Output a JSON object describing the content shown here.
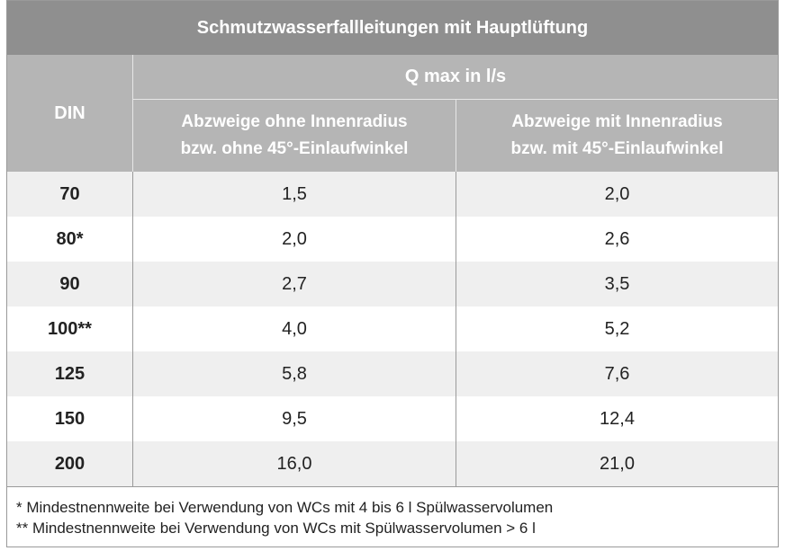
{
  "table": {
    "title": "Schmutzwasserfallleitungen mit Hauptlüftung",
    "din_header": "DIN",
    "q_header": "Q max in l/s",
    "col1_header": [
      "Abzweige ohne Innenradius",
      "bzw. ohne 45°-Einlaufwinkel"
    ],
    "col2_header": [
      "Abzweige mit Innenradius",
      "bzw. mit 45°-Einlaufwinkel"
    ],
    "rows": [
      {
        "din": "70",
        "v1": "1,5",
        "v2": "2,0"
      },
      {
        "din": "80*",
        "v1": "2,0",
        "v2": "2,6"
      },
      {
        "din": "90",
        "v1": "2,7",
        "v2": "3,5"
      },
      {
        "din": "100**",
        "v1": "4,0",
        "v2": "5,2"
      },
      {
        "din": "125",
        "v1": "5,8",
        "v2": "7,6"
      },
      {
        "din": "150",
        "v1": "9,5",
        "v2": "12,4"
      },
      {
        "din": "200",
        "v1": "16,0",
        "v2": "21,0"
      }
    ],
    "notes": [
      "*   Mindestnennweite bei Verwendung von WCs mit 4 bis 6 l Spülwasservolumen",
      "** Mindestnennweite bei Verwendung von WCs mit Spülwasservolumen > 6 l"
    ]
  }
}
